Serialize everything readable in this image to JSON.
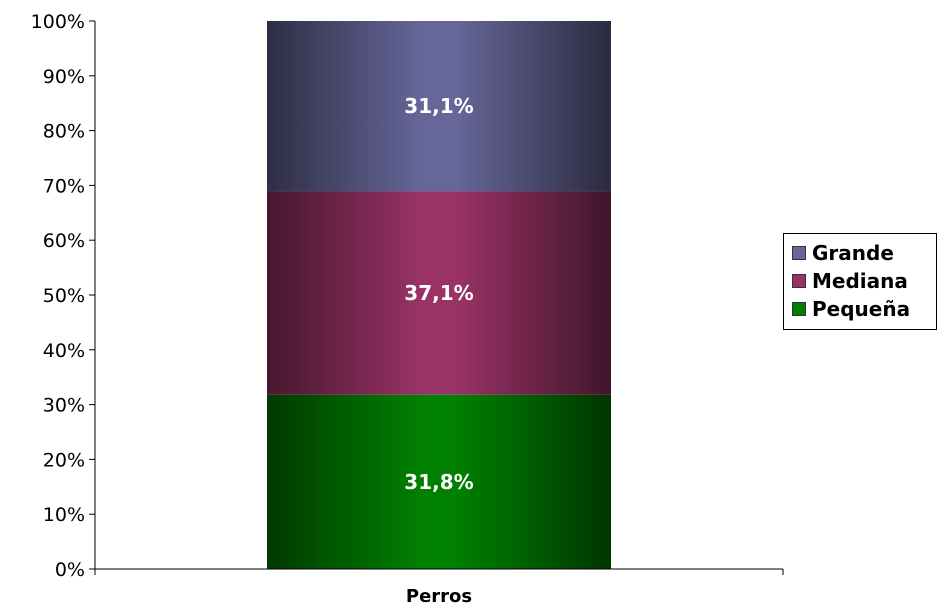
{
  "chart_data": {
    "type": "bar",
    "stacked": true,
    "categories": [
      "Perros"
    ],
    "series": [
      {
        "name": "Pequeña",
        "values": [
          31.8
        ],
        "label": "31,8%",
        "color": "#008000"
      },
      {
        "name": "Mediana",
        "values": [
          37.1
        ],
        "label": "37,1%",
        "color": "#993366"
      },
      {
        "name": "Grande",
        "values": [
          31.1
        ],
        "label": "31,1%",
        "color": "#666699"
      }
    ],
    "ylim": [
      0,
      100
    ],
    "yticks": [
      0,
      10,
      20,
      30,
      40,
      50,
      60,
      70,
      80,
      90,
      100
    ],
    "ytick_labels": [
      "0%",
      "10%",
      "20%",
      "30%",
      "40%",
      "50%",
      "60%",
      "70%",
      "80%",
      "90%",
      "100%"
    ],
    "legend_position": "right",
    "grid": false,
    "legend": {
      "entries": [
        "Grande",
        "Mediana",
        "Pequeña"
      ]
    }
  }
}
